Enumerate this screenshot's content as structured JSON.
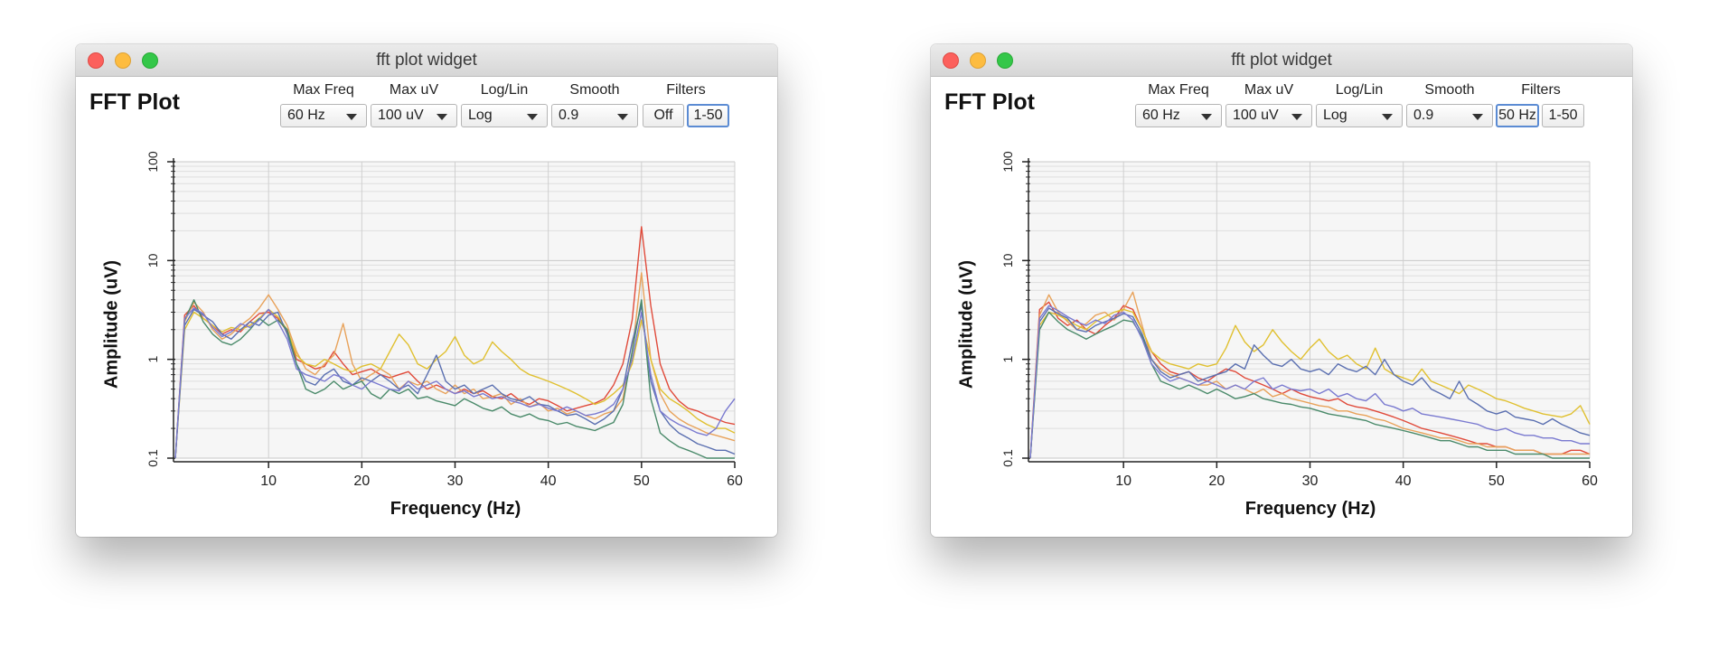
{
  "windows": [
    {
      "window_title": "fft plot widget",
      "plot_title": "FFT Plot",
      "controls": [
        {
          "label": "Max Freq",
          "value": "60 Hz"
        },
        {
          "label": "Max uV",
          "value": "100 uV"
        },
        {
          "label": "Log/Lin",
          "value": "Log"
        },
        {
          "label": "Smooth",
          "value": "0.9"
        }
      ],
      "filters": {
        "label": "Filters",
        "buttons": [
          {
            "text": "Off",
            "selected": false
          },
          {
            "text": "1-50",
            "selected": true
          }
        ]
      }
    },
    {
      "window_title": "fft plot widget",
      "plot_title": "FFT Plot",
      "controls": [
        {
          "label": "Max Freq",
          "value": "60 Hz"
        },
        {
          "label": "Max uV",
          "value": "100 uV"
        },
        {
          "label": "Log/Lin",
          "value": "Log"
        },
        {
          "label": "Smooth",
          "value": "0.9"
        }
      ],
      "filters": {
        "label": "Filters",
        "buttons": [
          {
            "text": "50 Hz",
            "selected": true
          },
          {
            "text": "1-50",
            "selected": false
          }
        ]
      }
    }
  ],
  "chart_data": [
    {
      "type": "line",
      "xlabel": "Frequency (Hz)",
      "ylabel": "Amplitude (uV)",
      "xlim": [
        0,
        60
      ],
      "ylim": [
        0.1,
        100
      ],
      "yscale": "log",
      "xticks": [
        10,
        20,
        30,
        40,
        50,
        60
      ],
      "yticks": [
        0.1,
        1,
        10,
        100
      ],
      "ytick_labels": [
        "0.1",
        "1",
        "10",
        "100"
      ],
      "grid": true,
      "x": [
        0,
        1,
        2,
        3,
        4,
        5,
        6,
        7,
        8,
        9,
        10,
        11,
        12,
        13,
        14,
        15,
        16,
        17,
        18,
        19,
        20,
        21,
        22,
        23,
        24,
        25,
        26,
        27,
        28,
        29,
        30,
        31,
        32,
        33,
        34,
        35,
        36,
        37,
        38,
        39,
        40,
        41,
        42,
        43,
        44,
        45,
        46,
        47,
        48,
        49,
        50,
        51,
        52,
        53,
        54,
        55,
        56,
        57,
        58,
        59,
        60
      ],
      "series": [
        {
          "color": "#e04a3a",
          "values": [
            0.1,
            2.8,
            3.5,
            2.6,
            2.2,
            1.8,
            2.0,
            1.9,
            2.4,
            2.9,
            3.0,
            2.6,
            1.9,
            1.0,
            0.9,
            0.8,
            0.85,
            1.2,
            0.9,
            0.7,
            0.75,
            0.8,
            0.7,
            0.65,
            0.7,
            0.75,
            0.6,
            0.5,
            0.55,
            0.5,
            0.45,
            0.5,
            0.45,
            0.48,
            0.42,
            0.4,
            0.45,
            0.38,
            0.35,
            0.4,
            0.38,
            0.34,
            0.3,
            0.32,
            0.34,
            0.36,
            0.4,
            0.55,
            0.9,
            2.5,
            22,
            3.5,
            0.9,
            0.5,
            0.38,
            0.32,
            0.3,
            0.27,
            0.25,
            0.23,
            0.22
          ]
        },
        {
          "color": "#e8a25a",
          "values": [
            0.1,
            2.4,
            3.8,
            3.0,
            2.0,
            1.6,
            1.8,
            2.2,
            2.6,
            3.3,
            4.5,
            3.2,
            2.2,
            1.2,
            0.8,
            0.7,
            0.9,
            1.1,
            2.3,
            0.9,
            0.6,
            0.7,
            0.8,
            0.7,
            0.5,
            0.6,
            0.55,
            0.6,
            0.5,
            0.45,
            0.55,
            0.45,
            0.5,
            0.4,
            0.42,
            0.45,
            0.35,
            0.4,
            0.33,
            0.36,
            0.3,
            0.32,
            0.28,
            0.3,
            0.27,
            0.25,
            0.28,
            0.3,
            0.4,
            1.2,
            7.5,
            1.0,
            0.45,
            0.3,
            0.25,
            0.22,
            0.2,
            0.18,
            0.17,
            0.16,
            0.15
          ]
        },
        {
          "color": "#e0c030",
          "values": [
            0.1,
            2.0,
            3.0,
            2.6,
            2.2,
            1.9,
            2.1,
            2.0,
            2.2,
            2.6,
            3.2,
            2.7,
            2.0,
            1.1,
            0.9,
            0.85,
            1.0,
            0.9,
            0.8,
            0.75,
            0.85,
            0.9,
            0.8,
            1.2,
            1.8,
            1.4,
            0.9,
            0.8,
            1.0,
            1.2,
            1.7,
            1.1,
            0.9,
            1.0,
            1.5,
            1.2,
            1.0,
            0.8,
            0.7,
            0.65,
            0.6,
            0.55,
            0.5,
            0.45,
            0.4,
            0.35,
            0.38,
            0.45,
            0.55,
            0.9,
            2.5,
            1.0,
            0.5,
            0.4,
            0.35,
            0.3,
            0.25,
            0.22,
            0.2,
            0.2,
            0.18
          ]
        },
        {
          "color": "#5a6fb0",
          "values": [
            0.1,
            2.2,
            3.2,
            2.8,
            2.4,
            1.8,
            1.6,
            2.0,
            2.4,
            2.2,
            2.8,
            3.0,
            1.8,
            0.9,
            0.6,
            0.55,
            0.7,
            0.8,
            0.6,
            0.55,
            0.65,
            0.6,
            0.7,
            0.6,
            0.5,
            0.55,
            0.45,
            0.7,
            1.1,
            0.6,
            0.5,
            0.55,
            0.45,
            0.5,
            0.55,
            0.45,
            0.4,
            0.38,
            0.42,
            0.35,
            0.34,
            0.3,
            0.27,
            0.28,
            0.25,
            0.22,
            0.25,
            0.3,
            0.5,
            1.5,
            3.5,
            0.6,
            0.3,
            0.22,
            0.18,
            0.16,
            0.14,
            0.13,
            0.12,
            0.12,
            0.11
          ]
        },
        {
          "color": "#4a8a6a",
          "values": [
            0.1,
            2.5,
            4.0,
            2.4,
            1.8,
            1.5,
            1.4,
            1.6,
            2.0,
            2.6,
            2.2,
            2.5,
            2.0,
            0.9,
            0.5,
            0.45,
            0.5,
            0.6,
            0.5,
            0.55,
            0.6,
            0.45,
            0.4,
            0.5,
            0.45,
            0.5,
            0.4,
            0.42,
            0.38,
            0.36,
            0.34,
            0.4,
            0.36,
            0.32,
            0.3,
            0.33,
            0.28,
            0.26,
            0.28,
            0.25,
            0.24,
            0.22,
            0.23,
            0.21,
            0.2,
            0.19,
            0.21,
            0.23,
            0.35,
            1.2,
            4.0,
            0.4,
            0.18,
            0.15,
            0.13,
            0.12,
            0.11,
            0.1,
            0.1,
            0.1,
            0.1
          ]
        },
        {
          "color": "#7a7ad0",
          "values": [
            0.1,
            2.6,
            3.3,
            2.9,
            2.1,
            1.7,
            1.9,
            2.3,
            2.1,
            2.5,
            3.2,
            2.4,
            1.6,
            0.8,
            0.7,
            0.65,
            0.6,
            0.7,
            0.65,
            0.55,
            0.5,
            0.6,
            0.55,
            0.5,
            0.48,
            0.6,
            0.5,
            0.55,
            0.6,
            0.5,
            0.45,
            0.48,
            0.42,
            0.45,
            0.4,
            0.42,
            0.38,
            0.36,
            0.33,
            0.35,
            0.32,
            0.3,
            0.33,
            0.3,
            0.27,
            0.28,
            0.3,
            0.35,
            0.5,
            1.0,
            3.0,
            0.7,
            0.3,
            0.25,
            0.22,
            0.2,
            0.18,
            0.17,
            0.2,
            0.3,
            0.4
          ]
        }
      ]
    },
    {
      "type": "line",
      "xlabel": "Frequency (Hz)",
      "ylabel": "Amplitude (uV)",
      "xlim": [
        0,
        60
      ],
      "ylim": [
        0.1,
        100
      ],
      "yscale": "log",
      "xticks": [
        10,
        20,
        30,
        40,
        50,
        60
      ],
      "yticks": [
        0.1,
        1,
        10,
        100
      ],
      "ytick_labels": [
        "0.1",
        "1",
        "10",
        "100"
      ],
      "grid": true,
      "x": [
        0,
        1,
        2,
        3,
        4,
        5,
        6,
        7,
        8,
        9,
        10,
        11,
        12,
        13,
        14,
        15,
        16,
        17,
        18,
        19,
        20,
        21,
        22,
        23,
        24,
        25,
        26,
        27,
        28,
        29,
        30,
        31,
        32,
        33,
        34,
        35,
        36,
        37,
        38,
        39,
        40,
        41,
        42,
        43,
        44,
        45,
        46,
        47,
        48,
        49,
        50,
        51,
        52,
        53,
        54,
        55,
        56,
        57,
        58,
        59,
        60
      ],
      "series": [
        {
          "color": "#e04a3a",
          "values": [
            0.1,
            3.2,
            3.8,
            2.6,
            2.2,
            2.5,
            2.0,
            1.8,
            2.2,
            2.6,
            3.5,
            3.2,
            2.0,
            1.2,
            0.9,
            0.75,
            0.7,
            0.75,
            0.65,
            0.6,
            0.7,
            0.8,
            0.75,
            0.65,
            0.6,
            0.55,
            0.5,
            0.45,
            0.5,
            0.45,
            0.42,
            0.4,
            0.38,
            0.4,
            0.35,
            0.33,
            0.32,
            0.3,
            0.28,
            0.26,
            0.24,
            0.22,
            0.2,
            0.19,
            0.18,
            0.17,
            0.16,
            0.15,
            0.14,
            0.14,
            0.13,
            0.13,
            0.12,
            0.12,
            0.12,
            0.11,
            0.11,
            0.11,
            0.12,
            0.12,
            0.11
          ]
        },
        {
          "color": "#e8a25a",
          "values": [
            0.1,
            2.8,
            4.5,
            3.0,
            2.4,
            2.0,
            2.3,
            2.8,
            3.0,
            2.5,
            3.2,
            4.8,
            2.2,
            1.0,
            0.8,
            0.7,
            0.65,
            0.6,
            0.55,
            0.55,
            0.6,
            0.5,
            0.55,
            0.5,
            0.45,
            0.5,
            0.42,
            0.45,
            0.4,
            0.38,
            0.36,
            0.34,
            0.33,
            0.3,
            0.3,
            0.28,
            0.27,
            0.25,
            0.24,
            0.22,
            0.2,
            0.19,
            0.18,
            0.17,
            0.16,
            0.16,
            0.15,
            0.14,
            0.14,
            0.13,
            0.13,
            0.13,
            0.12,
            0.12,
            0.12,
            0.11,
            0.11,
            0.11,
            0.11,
            0.11,
            0.11
          ]
        },
        {
          "color": "#e0c030",
          "values": [
            0.1,
            2.2,
            3.0,
            2.8,
            2.5,
            2.2,
            2.0,
            2.4,
            2.7,
            3.0,
            3.2,
            3.0,
            2.0,
            1.2,
            1.0,
            0.9,
            0.85,
            0.8,
            0.9,
            0.85,
            0.9,
            1.3,
            2.2,
            1.5,
            1.2,
            1.4,
            2.0,
            1.5,
            1.2,
            1.0,
            1.3,
            1.6,
            1.2,
            1.0,
            1.1,
            0.9,
            0.8,
            1.3,
            0.8,
            0.7,
            0.65,
            0.6,
            0.8,
            0.6,
            0.55,
            0.5,
            0.45,
            0.55,
            0.5,
            0.45,
            0.4,
            0.38,
            0.35,
            0.32,
            0.3,
            0.28,
            0.27,
            0.26,
            0.28,
            0.34,
            0.22
          ]
        },
        {
          "color": "#5a6fb0",
          "values": [
            0.1,
            2.4,
            3.3,
            2.9,
            2.6,
            2.0,
            1.9,
            2.2,
            2.4,
            2.6,
            2.9,
            2.7,
            1.8,
            1.0,
            0.75,
            0.65,
            0.7,
            0.75,
            0.6,
            0.65,
            0.7,
            0.75,
            0.9,
            0.8,
            1.4,
            1.1,
            0.9,
            0.85,
            1.0,
            0.8,
            0.75,
            0.8,
            0.7,
            0.9,
            0.8,
            0.75,
            0.85,
            0.7,
            1.0,
            0.7,
            0.6,
            0.55,
            0.65,
            0.5,
            0.45,
            0.4,
            0.6,
            0.4,
            0.35,
            0.3,
            0.28,
            0.3,
            0.26,
            0.25,
            0.24,
            0.22,
            0.25,
            0.22,
            0.2,
            0.18,
            0.17
          ]
        },
        {
          "color": "#4a8a6a",
          "values": [
            0.1,
            2.0,
            3.0,
            2.4,
            2.0,
            1.8,
            1.6,
            1.8,
            2.0,
            2.2,
            2.5,
            2.4,
            1.7,
            0.9,
            0.6,
            0.55,
            0.5,
            0.55,
            0.5,
            0.45,
            0.5,
            0.45,
            0.4,
            0.42,
            0.45,
            0.4,
            0.38,
            0.36,
            0.35,
            0.33,
            0.32,
            0.3,
            0.28,
            0.27,
            0.26,
            0.25,
            0.24,
            0.22,
            0.21,
            0.2,
            0.19,
            0.18,
            0.17,
            0.16,
            0.15,
            0.15,
            0.14,
            0.13,
            0.13,
            0.12,
            0.12,
            0.12,
            0.11,
            0.11,
            0.11,
            0.11,
            0.1,
            0.1,
            0.1,
            0.1,
            0.1
          ]
        },
        {
          "color": "#7a7ad0",
          "values": [
            0.1,
            2.6,
            3.5,
            3.1,
            2.7,
            2.4,
            2.2,
            2.5,
            2.3,
            2.8,
            3.0,
            2.5,
            1.6,
            0.9,
            0.7,
            0.6,
            0.65,
            0.6,
            0.55,
            0.6,
            0.55,
            0.5,
            0.55,
            0.5,
            0.6,
            0.65,
            0.5,
            0.55,
            0.5,
            0.48,
            0.5,
            0.45,
            0.5,
            0.42,
            0.45,
            0.4,
            0.38,
            0.45,
            0.35,
            0.33,
            0.3,
            0.32,
            0.28,
            0.27,
            0.26,
            0.25,
            0.24,
            0.23,
            0.22,
            0.2,
            0.19,
            0.2,
            0.18,
            0.17,
            0.17,
            0.16,
            0.16,
            0.15,
            0.15,
            0.14,
            0.14
          ]
        }
      ]
    }
  ]
}
